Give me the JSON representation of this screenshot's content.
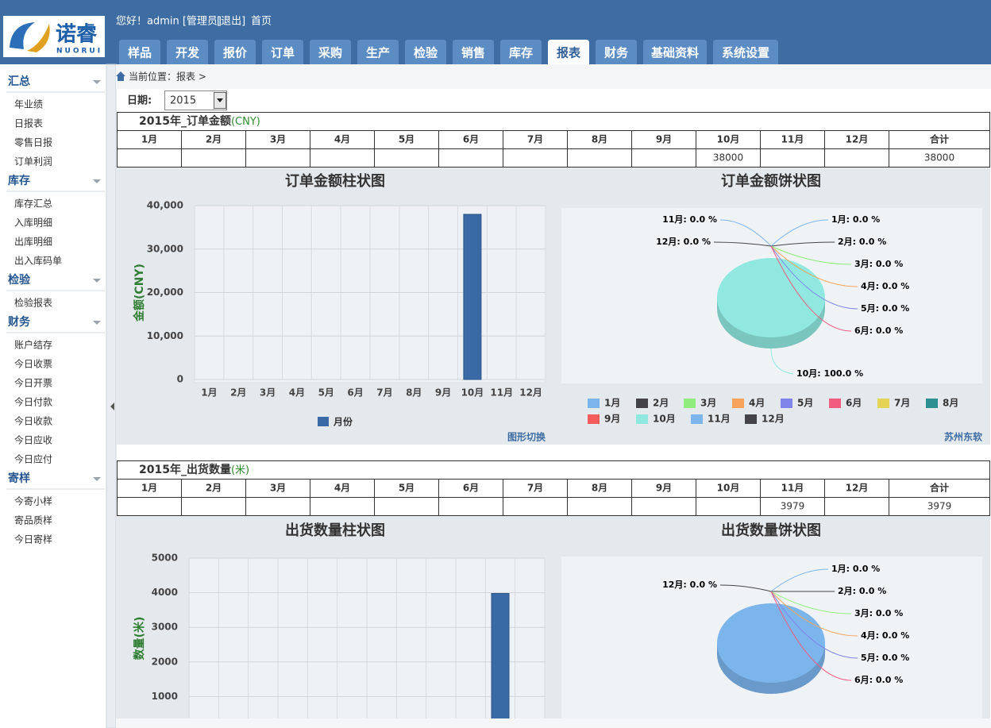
{
  "header": {
    "logo_cn": "诺睿",
    "logo_en": "NUORUI",
    "greeting": "您好！admin [管理员]",
    "logout": "[退出]",
    "home": "首页"
  },
  "nav": {
    "tabs": [
      "样品",
      "开发",
      "报价",
      "订单",
      "采购",
      "生产",
      "检验",
      "销售",
      "库存",
      "报表",
      "财务",
      "基础资料",
      "系统设置"
    ],
    "active": 9
  },
  "sidebar": {
    "groups": [
      {
        "title": "汇总",
        "items": [
          "年业绩",
          "日报表",
          "零售日报",
          "订单利润"
        ]
      },
      {
        "title": "库存",
        "items": [
          "库存汇总",
          "入库明细",
          "出库明细",
          "出入库码单"
        ]
      },
      {
        "title": "检验",
        "items": [
          "检验报表"
        ]
      },
      {
        "title": "财务",
        "items": [
          "账户结存",
          "今日收票",
          "今日开票",
          "今日付款",
          "今日收款",
          "今日应收",
          "今日应付"
        ]
      },
      {
        "title": "寄样",
        "items": [
          "今寄小样",
          "寄品质样",
          "今日寄样"
        ]
      }
    ]
  },
  "breadcrumb": "当前位置：报表 >",
  "filter": {
    "label": "日期:",
    "value": "2015"
  },
  "sections": [
    {
      "table": {
        "title": "2015年_订单金额",
        "unit": "(CNY)",
        "headers": [
          "1月",
          "2月",
          "3月",
          "4月",
          "5月",
          "6月",
          "7月",
          "8月",
          "9月",
          "10月",
          "11月",
          "12月",
          "合计"
        ],
        "values": [
          null,
          null,
          null,
          null,
          null,
          null,
          null,
          null,
          null,
          38000,
          null,
          null,
          38000
        ]
      },
      "bar_chart": {
        "type": "bar",
        "title": "订单金额柱状图",
        "y_label": "金额(CNY)",
        "color": "#3a6aa5",
        "categories": [
          "1月",
          "2月",
          "3月",
          "4月",
          "5月",
          "6月",
          "7月",
          "8月",
          "9月",
          "10月",
          "11月",
          "12月"
        ],
        "values": [
          0,
          0,
          0,
          0,
          0,
          0,
          0,
          0,
          0,
          38000,
          0,
          0
        ],
        "ylim": [
          0,
          40000
        ],
        "yticks": [
          0,
          {
            "value": 10000,
            "label": "10,000"
          },
          {
            "value": 20000,
            "label": "20,000"
          },
          {
            "value": 30000,
            "label": "30,000"
          },
          {
            "value": 40000,
            "label": "40,000"
          }
        ],
        "grid": true,
        "legend": "月份",
        "link": "图形切换"
      },
      "pie_chart": {
        "type": "pie",
        "title": "订单金额饼状图",
        "categories": [
          "1月",
          "2月",
          "3月",
          "4月",
          "5月",
          "6月",
          "7月",
          "8月",
          "9月",
          "10月",
          "11月",
          "12月"
        ],
        "values": [
          0,
          0,
          0,
          0,
          0,
          0,
          0,
          0,
          0,
          100,
          0,
          0
        ],
        "value_labels": [
          "1月: 0.0 %",
          "2月: 0.0 %",
          "3月: 0.0 %",
          "4月: 0.0 %",
          "5月: 0.0 %",
          "6月: 0.0 %",
          null,
          null,
          null,
          "10月: 100.0 %",
          "11月: 0.0 %",
          "12月: 0.0 %"
        ],
        "colors": [
          "#7cb5ec",
          "#434348",
          "#90ed7d",
          "#f7a35c",
          "#8085e9",
          "#f15c80",
          "#e4d354",
          "#2b908f",
          "#f45b5b",
          "#91e8e1",
          "#7cb5ec",
          "#434348"
        ],
        "footer": "苏州东软"
      }
    },
    {
      "table": {
        "title": "2015年_出货数量",
        "unit": "(米)",
        "headers": [
          "1月",
          "2月",
          "3月",
          "4月",
          "5月",
          "6月",
          "7月",
          "8月",
          "9月",
          "10月",
          "11月",
          "12月",
          "合计"
        ],
        "values": [
          null,
          null,
          null,
          null,
          null,
          null,
          null,
          null,
          null,
          null,
          3979,
          null,
          3979
        ]
      },
      "bar_chart": {
        "type": "bar",
        "title": "出货数量柱状图",
        "y_label": "数量(米)",
        "color": "#3a6aa5",
        "values": [
          0,
          0,
          0,
          0,
          0,
          0,
          0,
          0,
          0,
          0,
          3979,
          0
        ],
        "ylim": [
          0,
          5000
        ],
        "yticks": [
          1000,
          2000,
          3000,
          4000,
          5000
        ],
        "grid": true
      },
      "pie_chart": {
        "type": "pie",
        "title": "出货数量饼状图",
        "values": [
          0,
          0,
          0,
          0,
          0,
          0,
          0,
          0,
          0,
          0,
          100,
          0
        ],
        "value_labels": [
          "1月: 0.0 %",
          "2月: 0.0 %",
          "3月: 0.0 %",
          "4月: 0.0 %",
          "5月: 0.0 %",
          "6月: 0.0 %",
          null,
          null,
          null,
          null,
          null,
          "12月: 0.0 %"
        ],
        "colors": [
          "#7cb5ec",
          "#434348",
          "#90ed7d",
          "#f7a35c",
          "#8085e9",
          "#f15c80",
          "#e4d354",
          "#2b908f",
          "#f45b5b",
          "#91e8e1",
          "#7cb5ec",
          "#434348"
        ]
      }
    }
  ]
}
